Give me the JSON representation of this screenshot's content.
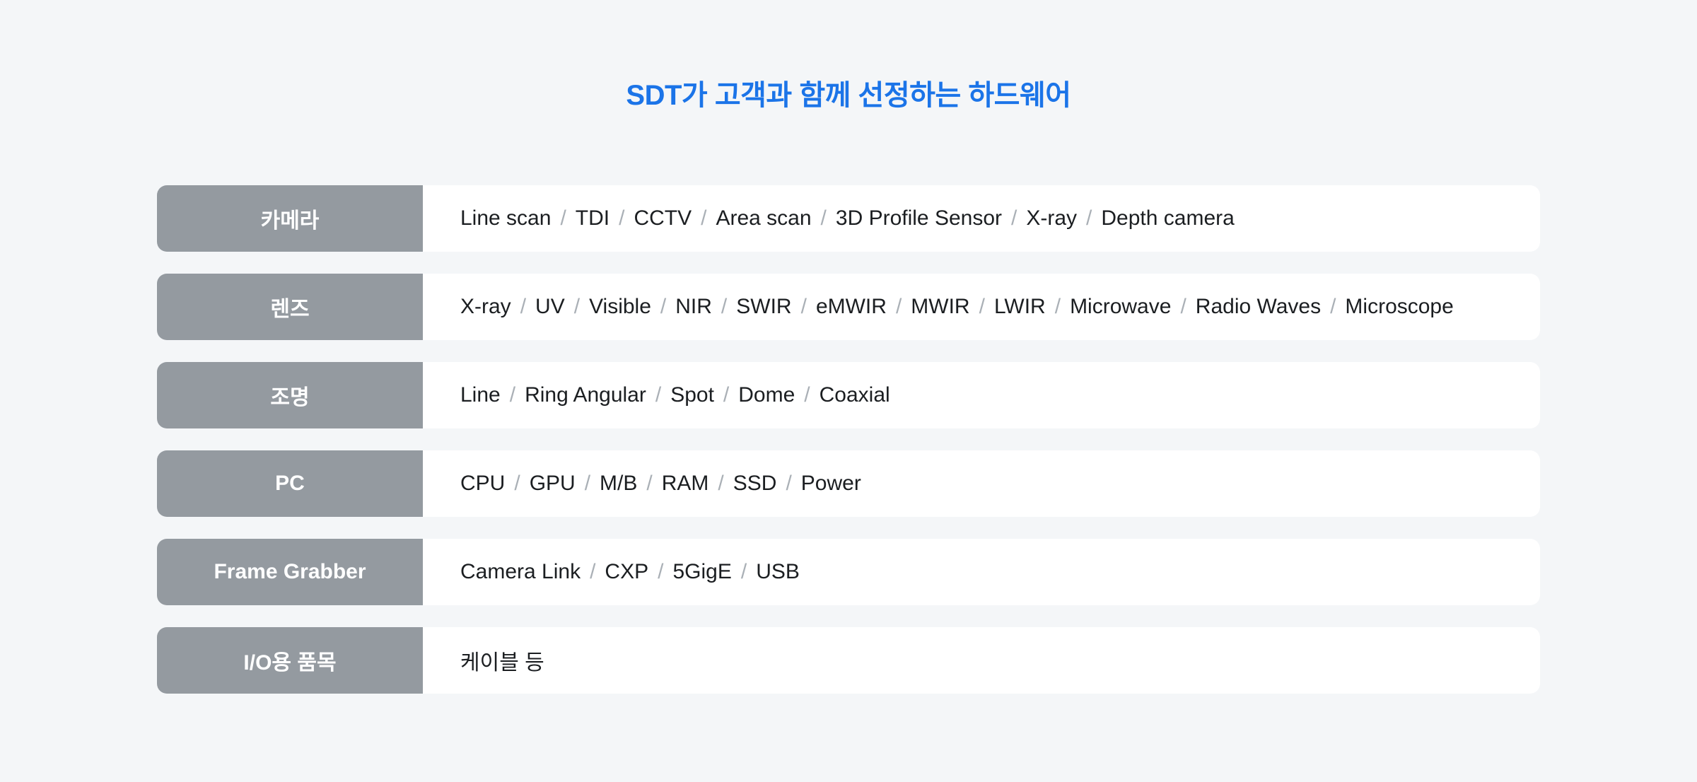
{
  "page": {
    "title": "SDT가 고객과 함께 선정하는 하드웨어"
  },
  "colors": {
    "bg": "#f4f6f8",
    "title-blue": "#1b74e8",
    "label-gray": "#949aa0",
    "row-white": "#ffffff",
    "text-dark": "#1b1e21",
    "separator-gray": "#aab0b6"
  },
  "table": {
    "separator": "/",
    "rows": [
      {
        "label": "카메라",
        "items": [
          "Line scan",
          "TDI",
          "CCTV",
          "Area scan",
          "3D Profile Sensor",
          "X-ray",
          "Depth camera"
        ]
      },
      {
        "label": "렌즈",
        "items": [
          "X-ray",
          "UV",
          "Visible",
          "NIR",
          "SWIR",
          "eMWIR",
          "MWIR",
          "LWIR",
          "Microwave",
          "Radio Waves",
          "Microscope"
        ]
      },
      {
        "label": "조명",
        "items": [
          "Line",
          "Ring Angular",
          "Spot",
          "Dome",
          "Coaxial"
        ]
      },
      {
        "label": "PC",
        "items": [
          "CPU",
          "GPU",
          "M/B",
          "RAM",
          "SSD",
          "Power"
        ]
      },
      {
        "label": "Frame Grabber",
        "items": [
          "Camera Link",
          "CXP",
          "5GigE",
          "USB"
        ]
      },
      {
        "label": "I/O용 품목",
        "items": [
          "케이블 등"
        ]
      }
    ]
  }
}
